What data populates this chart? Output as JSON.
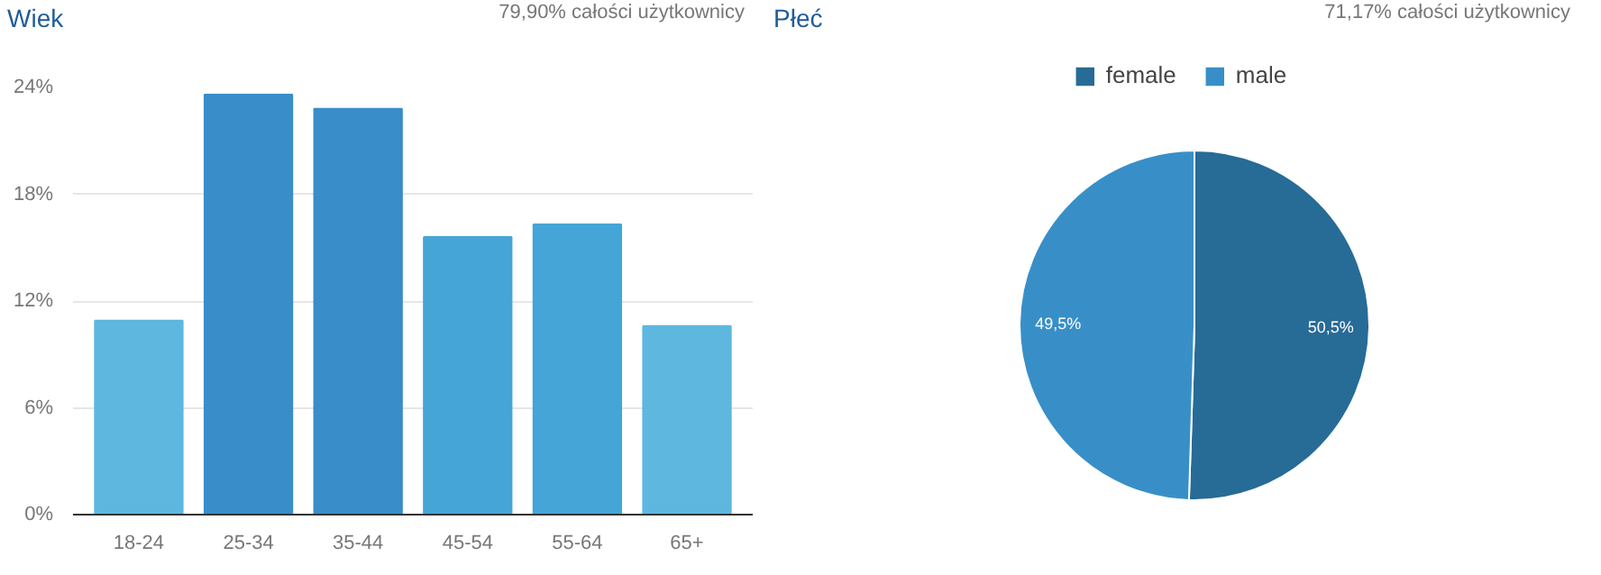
{
  "chart_data": [
    {
      "type": "bar",
      "title": "Wiek",
      "subtitle": "79,90% całości użytkownicy",
      "categories": [
        "18-24",
        "25-34",
        "35-44",
        "45-54",
        "55-64",
        "65+"
      ],
      "values": [
        10.9,
        23.6,
        22.8,
        15.6,
        16.3,
        10.6
      ],
      "colors": [
        "#5eb7df",
        "#398dc8",
        "#398dc8",
        "#45a5d6",
        "#45a5d6",
        "#5eb7df"
      ],
      "ylim": [
        0,
        24
      ],
      "yticks": [
        {
          "value": 0,
          "label": "0%"
        },
        {
          "value": 6,
          "label": "6%"
        },
        {
          "value": 12,
          "label": "12%"
        },
        {
          "value": 18,
          "label": "18%"
        },
        {
          "value": 24,
          "label": "24%"
        }
      ],
      "grid": "y",
      "legend": false
    },
    {
      "type": "pie",
      "title": "Płeć",
      "subtitle": "71,17% całości użytkownicy",
      "categories": [
        "female",
        "male"
      ],
      "values": [
        50.5,
        49.5
      ],
      "colors": [
        "#276b97",
        "#388fc8"
      ],
      "value_labels": [
        "50,5%",
        "49,5%"
      ],
      "legend": "top"
    }
  ]
}
